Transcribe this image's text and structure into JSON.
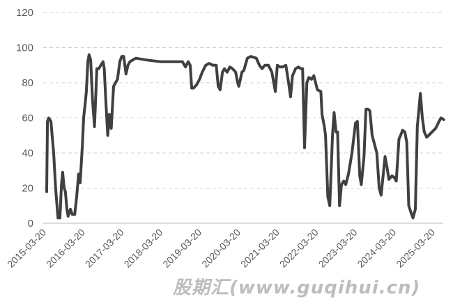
{
  "chart_data": {
    "type": "line",
    "title": "",
    "xlabel": "",
    "ylabel": "",
    "ylim": [
      0,
      120
    ],
    "yticks": [
      0,
      20,
      40,
      60,
      80,
      100,
      120
    ],
    "xtick_labels": [
      "2015-03-20",
      "2016-03-20",
      "2017-03-20",
      "2018-03-20",
      "2019-03-20",
      "2020-03-20",
      "2021-03-20",
      "2022-03-20",
      "2023-03-20",
      "2024-03-20",
      "2025-03-20"
    ],
    "grid": "horizontal dashed",
    "line_color": "#404040",
    "series": [
      {
        "points": [
          [
            2015.22,
            18
          ],
          [
            2015.24,
            58
          ],
          [
            2015.27,
            60
          ],
          [
            2015.33,
            58
          ],
          [
            2015.36,
            50
          ],
          [
            2015.4,
            40
          ],
          [
            2015.45,
            20
          ],
          [
            2015.51,
            3
          ],
          [
            2015.56,
            3
          ],
          [
            2015.6,
            22
          ],
          [
            2015.63,
            29
          ],
          [
            2015.67,
            20
          ],
          [
            2015.7,
            18
          ],
          [
            2015.74,
            8
          ],
          [
            2015.77,
            4
          ],
          [
            2015.83,
            8
          ],
          [
            2015.88,
            5
          ],
          [
            2015.94,
            5
          ],
          [
            2015.99,
            15
          ],
          [
            2016.04,
            28
          ],
          [
            2016.08,
            23
          ],
          [
            2016.14,
            45
          ],
          [
            2016.17,
            60
          ],
          [
            2016.21,
            68
          ],
          [
            2016.24,
            75
          ],
          [
            2016.28,
            92
          ],
          [
            2016.31,
            96
          ],
          [
            2016.35,
            93
          ],
          [
            2016.4,
            70
          ],
          [
            2016.45,
            55
          ],
          [
            2016.51,
            88
          ],
          [
            2016.56,
            88
          ],
          [
            2016.61,
            90
          ],
          [
            2016.67,
            92
          ],
          [
            2016.7,
            88
          ],
          [
            2016.74,
            70
          ],
          [
            2016.79,
            50
          ],
          [
            2016.83,
            62
          ],
          [
            2016.88,
            54
          ],
          [
            2016.94,
            78
          ],
          [
            2016.99,
            80
          ],
          [
            2017.04,
            82
          ],
          [
            2017.1,
            92
          ],
          [
            2017.15,
            95
          ],
          [
            2017.2,
            95
          ],
          [
            2017.26,
            85
          ],
          [
            2017.31,
            90
          ],
          [
            2017.36,
            92
          ],
          [
            2017.51,
            94
          ],
          [
            2017.78,
            93
          ],
          [
            2018.14,
            92
          ],
          [
            2018.5,
            92
          ],
          [
            2018.71,
            92
          ],
          [
            2018.79,
            89
          ],
          [
            2018.86,
            92
          ],
          [
            2018.91,
            90
          ],
          [
            2018.95,
            77
          ],
          [
            2019.0,
            77
          ],
          [
            2019.08,
            79
          ],
          [
            2019.15,
            82
          ],
          [
            2019.22,
            86
          ],
          [
            2019.31,
            90
          ],
          [
            2019.4,
            91
          ],
          [
            2019.49,
            90
          ],
          [
            2019.58,
            90
          ],
          [
            2019.63,
            78
          ],
          [
            2019.68,
            76
          ],
          [
            2019.74,
            86
          ],
          [
            2019.79,
            88
          ],
          [
            2019.86,
            86
          ],
          [
            2019.93,
            89
          ],
          [
            2020.0,
            88
          ],
          [
            2020.08,
            86
          ],
          [
            2020.13,
            80
          ],
          [
            2020.16,
            78
          ],
          [
            2020.24,
            86
          ],
          [
            2020.29,
            87
          ],
          [
            2020.38,
            94
          ],
          [
            2020.47,
            95
          ],
          [
            2020.61,
            94
          ],
          [
            2020.69,
            90
          ],
          [
            2020.76,
            88
          ],
          [
            2020.83,
            90
          ],
          [
            2020.92,
            90
          ],
          [
            2021.01,
            86
          ],
          [
            2021.1,
            75
          ],
          [
            2021.15,
            90
          ],
          [
            2021.22,
            89
          ],
          [
            2021.29,
            89
          ],
          [
            2021.37,
            90
          ],
          [
            2021.44,
            80
          ],
          [
            2021.49,
            72
          ],
          [
            2021.54,
            84
          ],
          [
            2021.62,
            88
          ],
          [
            2021.69,
            89
          ],
          [
            2021.76,
            88
          ],
          [
            2021.8,
            88
          ],
          [
            2021.85,
            43
          ],
          [
            2021.91,
            80
          ],
          [
            2021.96,
            83
          ],
          [
            2022.03,
            82
          ],
          [
            2022.09,
            84
          ],
          [
            2022.18,
            76
          ],
          [
            2022.27,
            75
          ],
          [
            2022.3,
            62
          ],
          [
            2022.36,
            55
          ],
          [
            2022.39,
            50
          ],
          [
            2022.45,
            15
          ],
          [
            2022.5,
            10
          ],
          [
            2022.57,
            50
          ],
          [
            2022.61,
            63
          ],
          [
            2022.66,
            52
          ],
          [
            2022.7,
            52
          ],
          [
            2022.75,
            10
          ],
          [
            2022.8,
            22
          ],
          [
            2022.86,
            24
          ],
          [
            2022.91,
            22
          ],
          [
            2022.98,
            28
          ],
          [
            2023.07,
            40
          ],
          [
            2023.16,
            57
          ],
          [
            2023.21,
            58
          ],
          [
            2023.27,
            27
          ],
          [
            2023.31,
            22
          ],
          [
            2023.38,
            38
          ],
          [
            2023.43,
            65
          ],
          [
            2023.48,
            65
          ],
          [
            2023.53,
            64
          ],
          [
            2023.59,
            50
          ],
          [
            2023.66,
            44
          ],
          [
            2023.71,
            40
          ],
          [
            2023.77,
            20
          ],
          [
            2023.82,
            16
          ],
          [
            2023.92,
            38
          ],
          [
            2023.97,
            32
          ],
          [
            2024.02,
            25
          ],
          [
            2024.1,
            27
          ],
          [
            2024.16,
            26
          ],
          [
            2024.21,
            24
          ],
          [
            2024.28,
            48
          ],
          [
            2024.32,
            50
          ],
          [
            2024.37,
            53
          ],
          [
            2024.43,
            52
          ],
          [
            2024.48,
            46
          ],
          [
            2024.53,
            10
          ],
          [
            2024.59,
            6
          ],
          [
            2024.64,
            3
          ],
          [
            2024.7,
            8
          ],
          [
            2024.75,
            55
          ],
          [
            2024.83,
            74
          ],
          [
            2024.88,
            60
          ],
          [
            2024.93,
            52
          ],
          [
            2024.99,
            49
          ],
          [
            2025.04,
            50
          ],
          [
            2025.13,
            52
          ],
          [
            2025.22,
            54
          ],
          [
            2025.31,
            58
          ],
          [
            2025.36,
            60
          ],
          [
            2025.43,
            59
          ]
        ]
      }
    ]
  },
  "watermark": "股期汇(www.guqihui.cn)"
}
